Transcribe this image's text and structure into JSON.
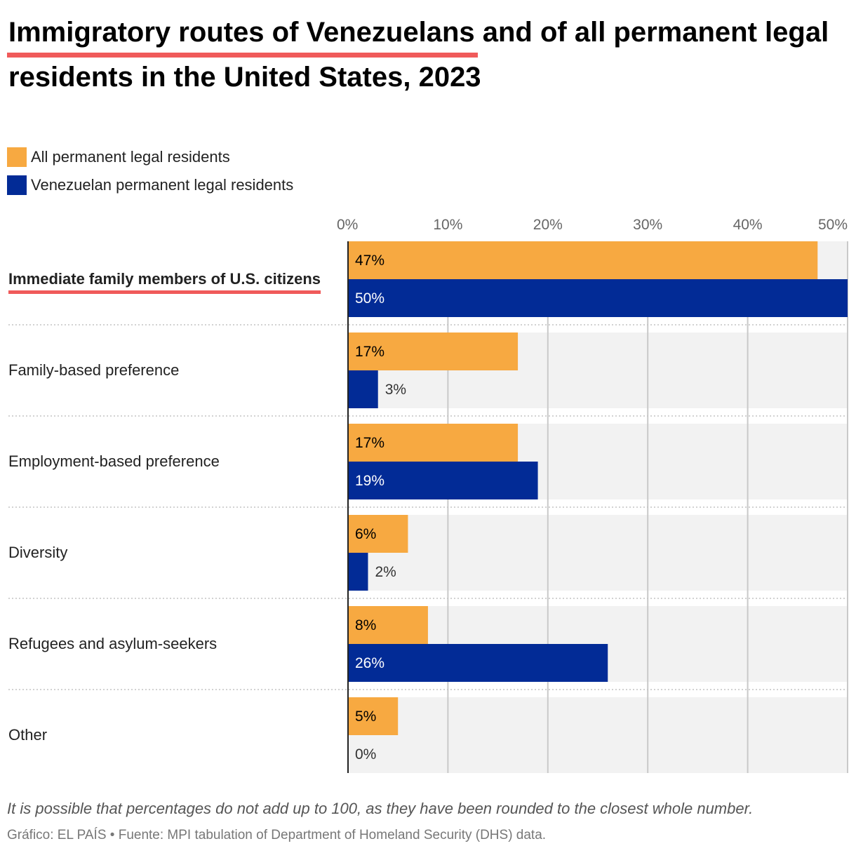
{
  "title": {
    "highlight": "Immigratory routes of Venezuelans",
    "rest": " and of all permanent legal residents in the United States, 2023"
  },
  "legend": [
    {
      "label": "All permanent legal residents",
      "color": "#f7a941"
    },
    {
      "label": "Venezuelan permanent legal residents",
      "color": "#022b96"
    }
  ],
  "footnote": "It is possible that percentages do not add up to 100, as they have been rounded to the closest whole number.",
  "source": "Gráfico: EL PAÍS • Fuente: MPI tabulation of Department of Homeland Security (DHS) data.",
  "chart_data": {
    "type": "bar",
    "orientation": "horizontal",
    "xlim": [
      0,
      50
    ],
    "ticks": [
      {
        "value": 0,
        "label": "0%"
      },
      {
        "value": 10,
        "label": "10%"
      },
      {
        "value": 20,
        "label": "20%"
      },
      {
        "value": 30,
        "label": "30%"
      },
      {
        "value": 40,
        "label": "40%"
      },
      {
        "value": 50,
        "label": "50%"
      }
    ],
    "categories": [
      "Immediate family members of U.S. citizens",
      "Family-based preference",
      "Employment-based preference",
      "Diversity",
      "Refugees and asylum-seekers",
      "Other"
    ],
    "highlighted_category": "Immediate family members of U.S. citizens",
    "series": [
      {
        "name": "All permanent legal residents",
        "color": "#f7a941",
        "values": [
          47,
          17,
          17,
          6,
          8,
          5
        ],
        "labels": [
          "47%",
          "17%",
          "17%",
          "6%",
          "8%",
          "5%"
        ]
      },
      {
        "name": "Venezuelan permanent legal residents",
        "color": "#022b96",
        "values": [
          50,
          3,
          19,
          2,
          26,
          0
        ],
        "labels": [
          "50%",
          "3%",
          "19%",
          "2%",
          "26%",
          "0%"
        ]
      }
    ]
  }
}
